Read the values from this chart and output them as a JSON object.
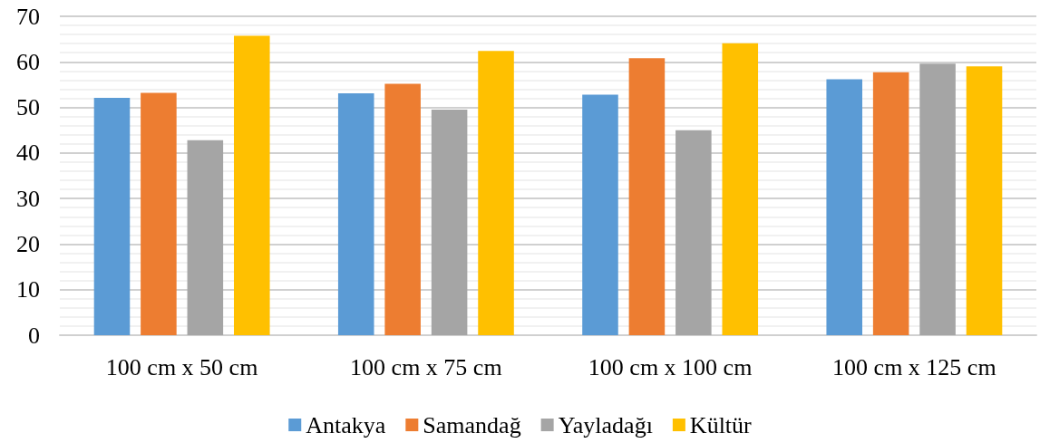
{
  "chart_data": {
    "type": "bar",
    "categories": [
      "100 cm x 50 cm",
      "100 cm x 75 cm",
      "100 cm x 100 cm",
      "100 cm x 125 cm"
    ],
    "series": [
      {
        "name": "Antakya",
        "color": "#5b9bd5",
        "values": [
          52.1,
          53.1,
          52.8,
          56.2
        ]
      },
      {
        "name": "Samandağ",
        "color": "#ed7d31",
        "values": [
          53.2,
          55.2,
          60.8,
          57.7
        ]
      },
      {
        "name": "Yayladağı",
        "color": "#a5a5a5",
        "values": [
          42.8,
          49.5,
          45.0,
          59.6
        ]
      },
      {
        "name": "Kültür",
        "color": "#ffc000",
        "values": [
          65.7,
          62.4,
          64.1,
          59.0
        ]
      }
    ],
    "ylim": [
      0,
      70
    ],
    "yticks": [
      0,
      10,
      20,
      30,
      40,
      50,
      60,
      70
    ],
    "grid": "y",
    "legend": "bottom"
  }
}
